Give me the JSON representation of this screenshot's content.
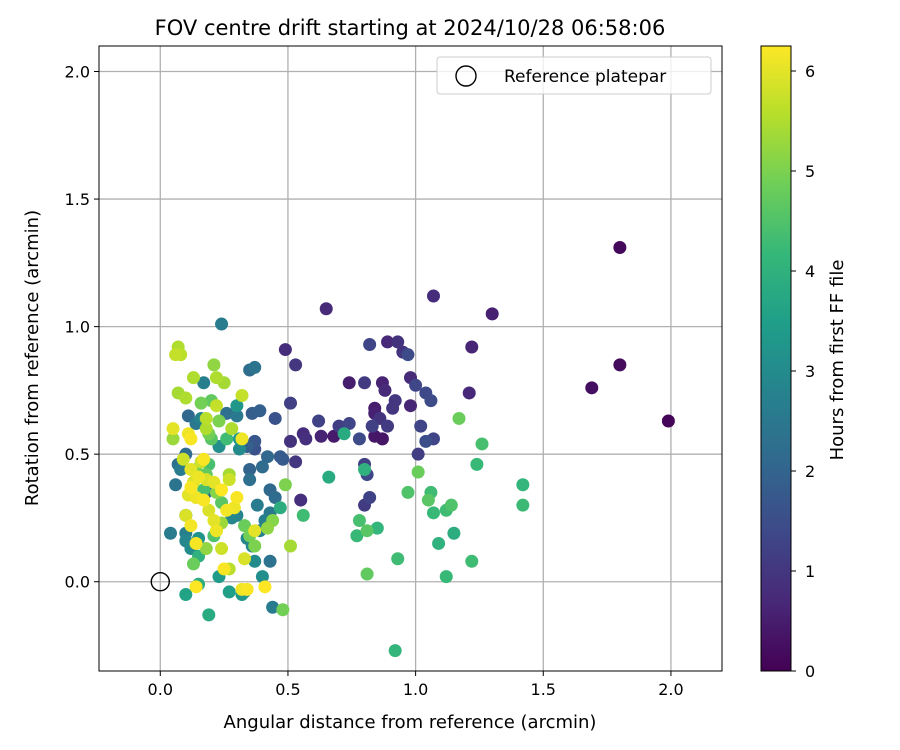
{
  "chart_data": {
    "type": "scatter",
    "title": "FOV centre drift starting at 2024/10/28 06:58:06",
    "xlabel": "Angular distance from reference (arcmin)",
    "ylabel": "Rotation from reference (arcmin)",
    "xlim": [
      -0.24,
      2.2
    ],
    "ylim": [
      -0.35,
      2.1
    ],
    "xticks": [
      "0.0",
      "0.5",
      "1.0",
      "1.5",
      "2.0"
    ],
    "yticks": [
      "0.0",
      "0.5",
      "1.0",
      "1.5",
      "2.0"
    ],
    "grid": true,
    "legend": {
      "label": "Reference platepar",
      "placement": "top-right"
    },
    "reference_point": {
      "x": 0.0,
      "y": 0.0
    },
    "colorbar": {
      "label": "Hours from first FF file",
      "colormap": "viridis",
      "range": [
        0,
        6.25
      ],
      "ticks": [
        "0",
        "1",
        "2",
        "3",
        "4",
        "5",
        "6"
      ]
    },
    "colorbar_stops": [
      "#440154",
      "#482878",
      "#3e4989",
      "#31688e",
      "#26828e",
      "#1f9e89",
      "#35b779",
      "#6ece58",
      "#b5de2b",
      "#fde725"
    ],
    "points": [
      [
        1.99,
        0.63,
        0.05
      ],
      [
        1.8,
        1.31,
        0.15
      ],
      [
        1.8,
        0.85,
        0.2
      ],
      [
        1.69,
        0.76,
        0.25
      ],
      [
        1.3,
        1.05,
        0.55
      ],
      [
        1.22,
        0.92,
        0.65
      ],
      [
        1.21,
        0.74,
        0.7
      ],
      [
        1.07,
        1.12,
        0.8
      ],
      [
        0.98,
        0.8,
        0.75
      ],
      [
        0.98,
        0.69,
        0.65
      ],
      [
        0.93,
        0.94,
        0.9
      ],
      [
        0.95,
        0.9,
        0.95
      ],
      [
        0.89,
        0.94,
        0.7
      ],
      [
        0.87,
        0.78,
        0.6
      ],
      [
        0.88,
        0.75,
        0.75
      ],
      [
        0.84,
        0.68,
        0.5
      ],
      [
        0.84,
        0.66,
        0.55
      ],
      [
        0.86,
        0.64,
        0.95
      ],
      [
        0.89,
        0.61,
        1.1
      ],
      [
        0.91,
        0.68,
        1.0
      ],
      [
        0.92,
        0.71,
        1.0
      ],
      [
        0.83,
        0.61,
        1.2
      ],
      [
        0.84,
        0.57,
        0.4
      ],
      [
        0.87,
        0.56,
        0.35
      ],
      [
        0.8,
        0.78,
        1.1
      ],
      [
        0.74,
        0.78,
        0.5
      ],
      [
        0.82,
        0.93,
        1.3
      ],
      [
        0.65,
        1.07,
        0.75
      ],
      [
        0.49,
        0.91,
        0.8
      ],
      [
        0.53,
        0.85,
        1.0
      ],
      [
        0.51,
        0.7,
        1.2
      ],
      [
        0.62,
        0.63,
        1.25
      ],
      [
        0.7,
        0.61,
        1.15
      ],
      [
        0.74,
        0.62,
        1.3
      ],
      [
        0.68,
        0.57,
        0.45
      ],
      [
        0.63,
        0.57,
        0.6
      ],
      [
        0.56,
        0.58,
        0.8
      ],
      [
        0.57,
        0.56,
        0.85
      ],
      [
        0.51,
        0.55,
        0.9
      ],
      [
        0.53,
        0.47,
        1.0
      ],
      [
        0.55,
        0.32,
        0.85
      ],
      [
        0.82,
        0.33,
        1.25
      ],
      [
        0.8,
        0.3,
        1.1
      ],
      [
        0.81,
        0.42,
        1.35
      ],
      [
        0.8,
        0.46,
        1.2
      ],
      [
        0.78,
        0.56,
        1.45
      ],
      [
        1.01,
        0.5,
        1.15
      ],
      [
        1.02,
        0.61,
        1.3
      ],
      [
        1.0,
        0.77,
        1.35
      ],
      [
        1.04,
        0.74,
        1.4
      ],
      [
        1.06,
        0.71,
        1.45
      ],
      [
        1.07,
        0.56,
        1.3
      ],
      [
        1.04,
        0.55,
        1.5
      ],
      [
        0.97,
        0.89,
        1.45
      ],
      [
        0.45,
        0.64,
        1.6
      ],
      [
        0.24,
        1.01,
        2.6
      ],
      [
        0.37,
        0.84,
        2.4
      ],
      [
        0.35,
        0.83,
        2.2
      ],
      [
        0.39,
        0.67,
        1.9
      ],
      [
        0.36,
        0.66,
        1.85
      ],
      [
        0.26,
        0.66,
        2.3
      ],
      [
        0.3,
        0.65,
        2.55
      ],
      [
        0.37,
        0.55,
        1.7
      ],
      [
        0.37,
        0.52,
        1.6
      ],
      [
        0.34,
        0.53,
        1.9
      ],
      [
        0.47,
        0.49,
        1.8
      ],
      [
        0.48,
        0.48,
        1.75
      ],
      [
        0.42,
        0.49,
        2.05
      ],
      [
        0.4,
        0.45,
        2.2
      ],
      [
        0.35,
        0.44,
        2.0
      ],
      [
        0.35,
        0.4,
        2.3
      ],
      [
        0.43,
        0.36,
        2.1
      ],
      [
        0.45,
        0.33,
        2.2
      ],
      [
        0.38,
        0.3,
        2.6
      ],
      [
        0.43,
        0.27,
        2.5
      ],
      [
        0.41,
        0.24,
        2.7
      ],
      [
        0.39,
        0.2,
        2.75
      ],
      [
        0.3,
        0.26,
        2.8
      ],
      [
        0.34,
        0.17,
        2.85
      ],
      [
        0.36,
        0.14,
        2.9
      ],
      [
        0.37,
        0.08,
        3.0
      ],
      [
        0.43,
        0.08,
        2.35
      ],
      [
        0.4,
        0.02,
        3.1
      ],
      [
        0.44,
        -0.1,
        2.6
      ],
      [
        0.48,
        -0.11,
        4.9
      ],
      [
        0.33,
        -0.04,
        3.2
      ],
      [
        0.32,
        -0.05,
        3.3
      ],
      [
        0.27,
        -0.04,
        3.5
      ],
      [
        0.19,
        -0.13,
        3.8
      ],
      [
        0.1,
        -0.05,
        3.6
      ],
      [
        0.15,
        -0.01,
        3.9
      ],
      [
        0.15,
        0.1,
        4.0
      ],
      [
        0.15,
        0.17,
        3.2
      ],
      [
        0.12,
        0.13,
        3.0
      ],
      [
        0.1,
        0.16,
        2.9
      ],
      [
        0.1,
        0.19,
        2.7
      ],
      [
        0.04,
        0.19,
        2.6
      ],
      [
        0.1,
        0.26,
        2.5
      ],
      [
        0.06,
        0.38,
        2.4
      ],
      [
        0.07,
        0.46,
        2.3
      ],
      [
        0.1,
        0.5,
        2.2
      ],
      [
        0.11,
        0.65,
        2.1
      ],
      [
        0.08,
        0.44,
        2.6
      ],
      [
        0.14,
        0.62,
        2.5
      ],
      [
        0.16,
        0.64,
        2.8
      ],
      [
        0.17,
        0.78,
        2.7
      ],
      [
        0.23,
        0.53,
        3.1
      ],
      [
        0.21,
        0.37,
        2.0
      ],
      [
        0.18,
        0.35,
        2.1
      ],
      [
        0.23,
        0.02,
        3.4
      ],
      [
        0.28,
        0.25,
        2.9
      ],
      [
        0.31,
        0.52,
        3.0
      ],
      [
        0.3,
        0.69,
        3.3
      ],
      [
        0.31,
        0.56,
        3.3
      ],
      [
        0.72,
        0.58,
        3.8
      ],
      [
        0.66,
        0.41,
        3.8
      ],
      [
        0.56,
        0.26,
        4.3
      ],
      [
        0.47,
        0.29,
        3.9
      ],
      [
        0.8,
        0.44,
        4.0
      ],
      [
        0.78,
        0.24,
        4.4
      ],
      [
        0.77,
        0.18,
        4.2
      ],
      [
        0.81,
        0.2,
        4.6
      ],
      [
        0.85,
        0.21,
        4.1
      ],
      [
        0.81,
        0.03,
        4.7
      ],
      [
        0.93,
        0.09,
        4.3
      ],
      [
        0.92,
        -0.27,
        4.1
      ],
      [
        0.97,
        0.35,
        4.5
      ],
      [
        1.01,
        0.43,
        4.8
      ],
      [
        1.05,
        0.32,
        4.6
      ],
      [
        1.06,
        0.35,
        4.3
      ],
      [
        1.07,
        0.27,
        4.2
      ],
      [
        1.09,
        0.15,
        4.0
      ],
      [
        1.12,
        0.28,
        4.3
      ],
      [
        1.14,
        0.3,
        4.5
      ],
      [
        1.15,
        0.19,
        3.9
      ],
      [
        1.12,
        0.02,
        4.2
      ],
      [
        1.17,
        0.64,
        4.8
      ],
      [
        1.24,
        0.46,
        4.2
      ],
      [
        1.26,
        0.54,
        4.4
      ],
      [
        1.22,
        0.08,
        4.3
      ],
      [
        1.42,
        0.38,
        4.1
      ],
      [
        1.42,
        0.3,
        4.25
      ],
      [
        0.49,
        0.38,
        5.0
      ],
      [
        0.51,
        0.14,
        5.4
      ],
      [
        0.44,
        0.24,
        5.1
      ],
      [
        0.42,
        0.21,
        5.2
      ],
      [
        0.37,
        0.14,
        5.0
      ],
      [
        0.35,
        0.18,
        4.9
      ],
      [
        0.33,
        0.22,
        4.8
      ],
      [
        0.24,
        0.31,
        4.6
      ],
      [
        0.21,
        0.18,
        4.5
      ],
      [
        0.17,
        0.36,
        4.4
      ],
      [
        0.18,
        0.42,
        4.7
      ],
      [
        0.19,
        0.46,
        4.4
      ],
      [
        0.14,
        0.44,
        4.9
      ],
      [
        0.2,
        0.56,
        4.6
      ],
      [
        0.26,
        0.56,
        4.3
      ],
      [
        0.2,
        0.71,
        4.7
      ],
      [
        0.16,
        0.7,
        4.9
      ],
      [
        0.13,
        0.07,
        4.8
      ],
      [
        0.18,
        0.13,
        5.2
      ],
      [
        0.24,
        0.23,
        5.3
      ],
      [
        0.22,
        0.35,
        5.1
      ],
      [
        0.19,
        0.58,
        4.9
      ],
      [
        0.23,
        0.63,
        5.0
      ],
      [
        0.27,
        0.42,
        5.4
      ],
      [
        0.21,
        0.85,
        5.2
      ],
      [
        0.25,
        0.78,
        5.4
      ],
      [
        0.22,
        0.8,
        5.5
      ],
      [
        0.13,
        0.8,
        5.5
      ],
      [
        0.07,
        0.92,
        5.5
      ],
      [
        0.08,
        0.89,
        5.6
      ],
      [
        0.06,
        0.89,
        5.7
      ],
      [
        0.05,
        0.56,
        5.3
      ],
      [
        0.07,
        0.74,
        5.4
      ],
      [
        0.1,
        0.72,
        5.5
      ],
      [
        0.18,
        0.64,
        5.6
      ],
      [
        0.18,
        0.6,
        5.5
      ],
      [
        0.22,
        0.69,
        5.7
      ],
      [
        0.28,
        0.6,
        5.5
      ],
      [
        0.32,
        0.73,
        5.7
      ],
      [
        0.27,
        0.4,
        5.8
      ],
      [
        0.18,
        0.4,
        5.9
      ],
      [
        0.16,
        0.47,
        5.8
      ],
      [
        0.12,
        0.44,
        6.0
      ],
      [
        0.13,
        0.39,
        5.9
      ],
      [
        0.14,
        0.33,
        6.1
      ],
      [
        0.19,
        0.28,
        5.9
      ],
      [
        0.21,
        0.24,
        6.0
      ],
      [
        0.22,
        0.2,
        5.7
      ],
      [
        0.24,
        0.13,
        5.8
      ],
      [
        0.27,
        0.05,
        5.6
      ],
      [
        0.33,
        0.09,
        5.9
      ],
      [
        0.37,
        0.2,
        6.0
      ],
      [
        0.29,
        0.29,
        6.1
      ],
      [
        0.3,
        0.33,
        6.2
      ],
      [
        0.26,
        0.28,
        6.15
      ],
      [
        0.22,
        0.2,
        6.1
      ],
      [
        0.12,
        0.37,
        6.2
      ],
      [
        0.11,
        0.34,
        6.0
      ],
      [
        0.1,
        0.26,
        5.9
      ],
      [
        0.12,
        0.22,
        6.15
      ],
      [
        0.11,
        0.58,
        6.1
      ],
      [
        0.12,
        0.56,
        6.2
      ],
      [
        0.05,
        0.6,
        6.0
      ],
      [
        0.09,
        0.48,
        5.8
      ],
      [
        0.14,
        0.15,
        6.2
      ],
      [
        0.14,
        -0.02,
        6.25
      ],
      [
        0.25,
        0.05,
        6.2
      ],
      [
        0.32,
        -0.03,
        6.1
      ],
      [
        0.34,
        -0.03,
        6.2
      ],
      [
        0.41,
        -0.02,
        6.25
      ],
      [
        0.32,
        0.56,
        6.1
      ],
      [
        0.17,
        0.48,
        6.2
      ],
      [
        0.24,
        0.36,
        6.25
      ],
      [
        0.21,
        0.39,
        6.0
      ],
      [
        0.15,
        0.41,
        6.1
      ],
      [
        0.17,
        0.32,
        6.2
      ]
    ]
  }
}
